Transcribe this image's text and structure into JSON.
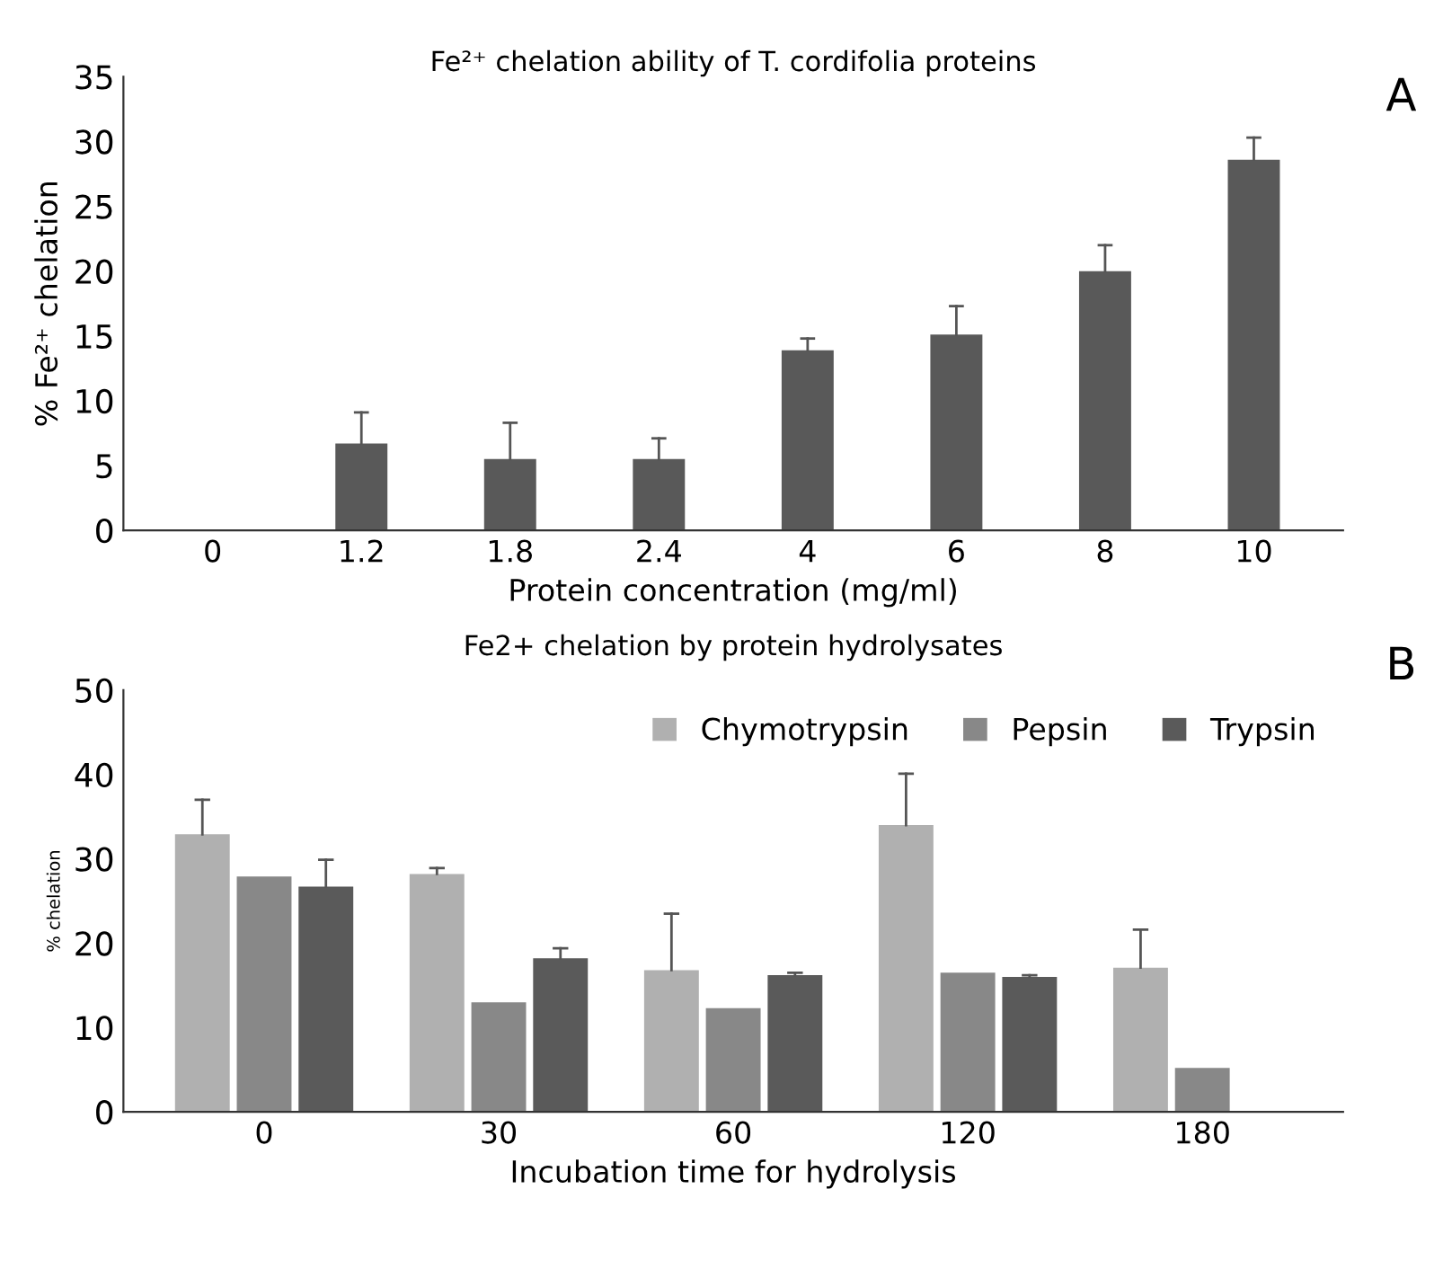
{
  "chart_data": [
    {
      "type": "bar",
      "title": "Fe²⁺ chelation ability of T. cordifolia proteins",
      "xlabel": "Protein concentration (mg/ml)",
      "ylabel": "% Fe²⁺ chelation",
      "annotations": [
        "A"
      ],
      "categories": [
        "0",
        "1.2",
        "1.8",
        "2.4",
        "4",
        "6",
        "8",
        "10"
      ],
      "series": [
        {
          "color": "#595959",
          "values": [
            0,
            6.7,
            5.5,
            5.5,
            13.9,
            15.1,
            20.0,
            28.6
          ],
          "errors": [
            null,
            [
              6.7,
              9.1
            ],
            [
              5.5,
              8.3
            ],
            [
              5.5,
              7.1
            ],
            [
              13.9,
              14.8
            ],
            [
              15.1,
              17.3
            ],
            [
              20.0,
              22.0
            ],
            [
              28.6,
              30.3
            ]
          ]
        }
      ],
      "ylim": [
        0,
        35
      ],
      "yticks": [
        0,
        5,
        10,
        15,
        20,
        25,
        30,
        35
      ],
      "grid": false,
      "legend": false
    },
    {
      "type": "bar",
      "title": "Fe2+ chelation by protein hydrolysates",
      "xlabel": "Incubation time for hydrolysis",
      "ylabel": "% chelation",
      "annotations": [
        "B"
      ],
      "categories": [
        "0",
        "30",
        "60",
        "120",
        "180"
      ],
      "series": [
        {
          "name": "Chymotrypsin",
          "color": "#b0b0b0",
          "values": [
            32.9,
            28.2,
            16.8,
            34.0,
            17.1
          ],
          "errors": [
            [
              32.9,
              37.0
            ],
            [
              28.2,
              28.9
            ],
            [
              16.8,
              23.5
            ],
            [
              34.0,
              40.1
            ],
            [
              17.1,
              21.6
            ]
          ]
        },
        {
          "name": "Pepsin",
          "color": "#888888",
          "values": [
            27.9,
            13.0,
            12.3,
            16.5,
            5.2
          ]
        },
        {
          "name": "Trypsin",
          "color": "#5a5a5a",
          "values": [
            26.7,
            18.2,
            16.2,
            16.0,
            null
          ],
          "errors": [
            [
              26.7,
              29.9
            ],
            [
              18.2,
              19.4
            ],
            [
              16.2,
              16.5
            ],
            [
              16.0,
              16.2
            ],
            null
          ]
        }
      ],
      "ylim": [
        0,
        50
      ],
      "yticks": [
        0,
        10,
        20,
        30,
        40,
        50
      ],
      "grid": false,
      "legend": "top right"
    }
  ]
}
